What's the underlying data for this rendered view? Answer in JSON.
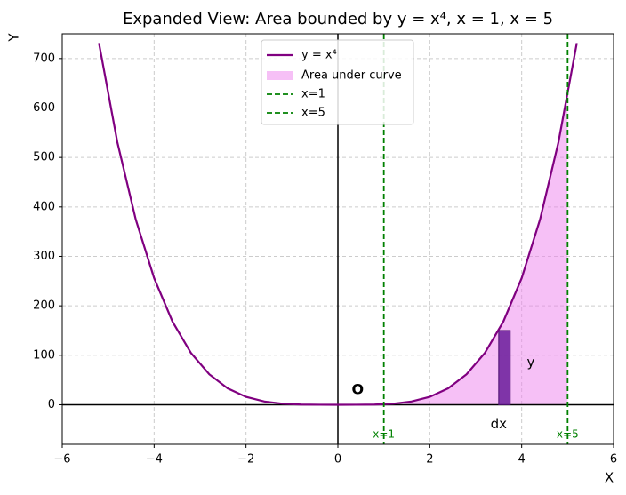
{
  "chart_data": {
    "type": "line",
    "title": "Expanded View: Area bounded by y = x⁴, x = 1, x = 5",
    "x_label": "X",
    "y_label": "Y",
    "xlim": [
      -6,
      6
    ],
    "ylim": [
      -80,
      750
    ],
    "xticks": [
      {
        "value": -6,
        "label": "−6"
      },
      {
        "value": -4,
        "label": "−4"
      },
      {
        "value": -2,
        "label": "−2"
      },
      0,
      2,
      4,
      6
    ],
    "yticks": [
      0,
      100,
      200,
      300,
      400,
      500,
      600,
      700
    ],
    "grid": true,
    "legend": "upper center",
    "series": [
      {
        "name": "y = x⁴",
        "color": "#800080",
        "x": [
          -5.2,
          -4.8,
          -4.4,
          -4.0,
          -3.6,
          -3.2,
          -2.8,
          -2.4,
          -2.0,
          -1.6,
          -1.2,
          -0.8,
          -0.4,
          0,
          0.4,
          0.8,
          1.2,
          1.6,
          2.0,
          2.4,
          2.8,
          3.2,
          3.6,
          4.0,
          4.4,
          4.8,
          5.2
        ],
        "values": [
          731.1616,
          530.8416,
          374.8096,
          256,
          167.9616,
          104.8576,
          61.4656,
          33.1776,
          16,
          6.5536,
          2.0736,
          0.4096,
          0.0256,
          0,
          0.0256,
          0.4096,
          2.0736,
          6.5536,
          16,
          33.1776,
          61.4656,
          104.8576,
          167.9616,
          256,
          374.8096,
          530.8416,
          731.1616
        ]
      },
      {
        "name": "Area under curve",
        "color": "#ee82ee",
        "x": [
          1,
          1.4,
          1.8,
          2.2,
          2.6,
          3.0,
          3.4,
          3.8,
          4.2,
          4.6,
          5.0
        ],
        "values": [
          1,
          3.8416,
          10.4976,
          23.4256,
          45.6976,
          81,
          133.6336,
          208.5136,
          311.1696,
          447.7456,
          625
        ]
      }
    ],
    "vlines": [
      {
        "name": "x=1",
        "value": 1,
        "color": "#008000"
      },
      {
        "name": "x=5",
        "value": 5,
        "color": "#008000"
      }
    ],
    "strip": {
      "x": 3.5,
      "width": 0.25,
      "height": 150,
      "color": "#6a1b9a"
    },
    "annotations": [
      "O",
      "y",
      "dx"
    ]
  }
}
